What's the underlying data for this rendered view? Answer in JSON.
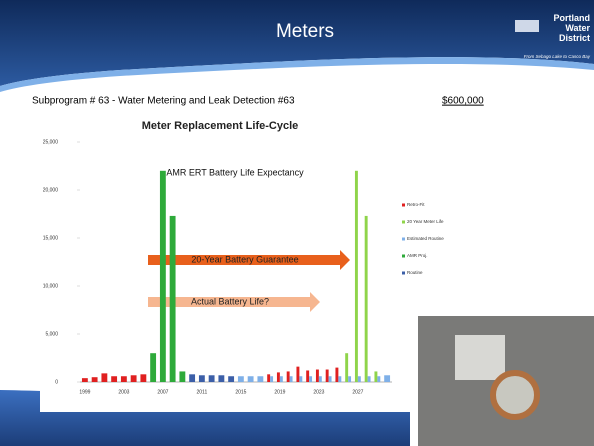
{
  "slide": {
    "title": "Meters",
    "logo_name": "Portland Water District",
    "logo_tagline": "From Sebago Lake to Casco Bay",
    "subprogram": "Subprogram # 63 - Water Metering and Leak Detection  #63",
    "amount": "$600,000"
  },
  "chart_data": {
    "type": "bar",
    "title": "Meter Replacement Life-Cycle",
    "categories": [
      "1999",
      null,
      null,
      null,
      "2003",
      null,
      null,
      null,
      "2007",
      null,
      null,
      null,
      "2011",
      null,
      null,
      null,
      "2015",
      null,
      null,
      null,
      "2019",
      null,
      null,
      null,
      "2023",
      null,
      null,
      null,
      "2027",
      null,
      null,
      null
    ],
    "series": [
      {
        "name": "Retro-Fit",
        "color": "#e02020",
        "values": [
          400,
          500,
          900,
          600,
          600,
          700,
          800,
          null,
          null,
          null,
          null,
          null,
          null,
          null,
          null,
          null,
          null,
          null,
          null,
          800,
          1000,
          1100,
          1600,
          1200,
          1300,
          1300,
          1500,
          null,
          null,
          null,
          null,
          null
        ]
      },
      {
        "name": "20 Year Meter Life",
        "color": "#8fd44a",
        "values": [
          null,
          null,
          null,
          null,
          null,
          null,
          null,
          null,
          null,
          null,
          null,
          null,
          null,
          null,
          null,
          null,
          null,
          null,
          null,
          null,
          null,
          null,
          null,
          null,
          null,
          null,
          null,
          3000,
          22000,
          17300,
          1100,
          null
        ]
      },
      {
        "name": "Estimated Routine",
        "color": "#7fb0e8",
        "values": [
          null,
          null,
          null,
          null,
          null,
          null,
          null,
          null,
          null,
          null,
          null,
          null,
          null,
          null,
          null,
          null,
          600,
          600,
          600,
          600,
          600,
          600,
          600,
          600,
          600,
          600,
          600,
          600,
          600,
          600,
          600,
          700
        ]
      },
      {
        "name": "AMR Proj.",
        "color": "#2eaa3a",
        "values": [
          null,
          null,
          null,
          null,
          null,
          null,
          null,
          3000,
          22000,
          17300,
          1100,
          null,
          null,
          null,
          null,
          null,
          null,
          null,
          null,
          null,
          null,
          null,
          null,
          null,
          null,
          null,
          null,
          null,
          null,
          null,
          null,
          null
        ]
      },
      {
        "name": "Routine",
        "color": "#3c5fa8",
        "values": [
          null,
          null,
          null,
          null,
          null,
          null,
          null,
          null,
          null,
          null,
          null,
          800,
          700,
          700,
          700,
          600,
          null,
          null,
          null,
          null,
          null,
          null,
          null,
          null,
          null,
          null,
          null,
          null,
          null,
          null,
          null,
          null
        ]
      }
    ],
    "ylim": [
      0,
      25000
    ],
    "yticks": [
      0,
      {
        "value": 5000,
        "label": "5,000"
      },
      {
        "value": 10000,
        "label": "10,000"
      },
      {
        "value": 15000,
        "label": "15,000"
      },
      {
        "value": 20000,
        "label": "20,000"
      },
      {
        "value": 25000,
        "label": "25,000"
      }
    ],
    "annotations": [
      "AMR ERT Battery Life Expectancy",
      "20-Year Battery Guarantee",
      "Actual Battery Life?"
    ],
    "grid": false
  }
}
